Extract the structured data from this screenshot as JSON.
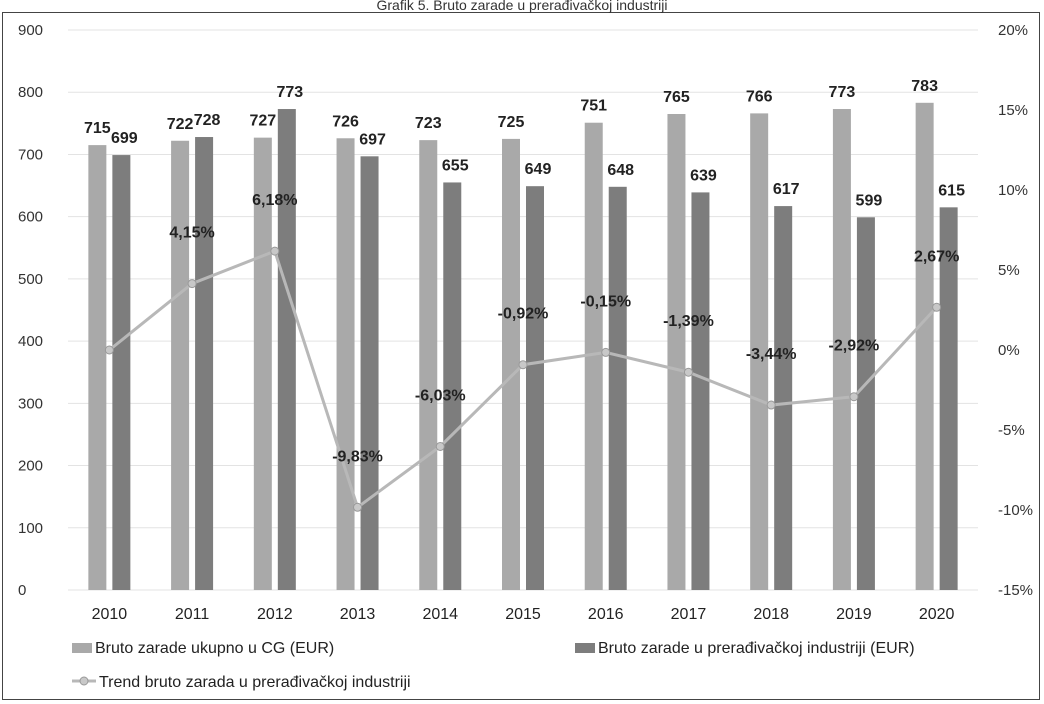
{
  "chart_data": {
    "type": "bar",
    "title": "Grafik 5. Bruto zarade u prerađivačkoj industriji",
    "categories": [
      "2010",
      "2011",
      "2012",
      "2013",
      "2014",
      "2015",
      "2016",
      "2017",
      "2018",
      "2019",
      "2020"
    ],
    "series": [
      {
        "name": "Bruto zarade ukupno u CG (EUR)",
        "type": "bar",
        "axis": "left",
        "color": "#a9a9a9",
        "values": [
          715,
          722,
          727,
          726,
          723,
          725,
          751,
          765,
          766,
          773,
          783
        ],
        "labels": [
          "715",
          "722",
          "727",
          "726",
          "723",
          "725",
          "751",
          "765",
          "766",
          "773",
          "783"
        ]
      },
      {
        "name": "Bruto zarade u prerađivačkoj industriji (EUR)",
        "type": "bar",
        "axis": "left",
        "color": "#7d7d7d",
        "values": [
          699,
          728,
          773,
          697,
          655,
          649,
          648,
          639,
          617,
          599,
          615
        ],
        "labels": [
          "699",
          "728",
          "773",
          "697",
          "655",
          "649",
          "648",
          "639",
          "617",
          "599",
          "615"
        ]
      },
      {
        "name": "Trend bruto zarada u prerađivačkoj industriji",
        "type": "line",
        "axis": "right",
        "color": "#b8b8b8",
        "values": [
          0,
          4.15,
          6.18,
          -9.83,
          -6.03,
          -0.92,
          -0.15,
          -1.39,
          -3.44,
          -2.92,
          2.67
        ],
        "labels": [
          "",
          "4,15%",
          "6,18%",
          "-9,83%",
          "-6,03%",
          "-0,92%",
          "-0,15%",
          "-1,39%",
          "-3,44%",
          "-2,92%",
          "2,67%"
        ]
      }
    ],
    "y_left": {
      "min": 0,
      "max": 900,
      "step": 100,
      "ticks": [
        "0",
        "100",
        "200",
        "300",
        "400",
        "500",
        "600",
        "700",
        "800",
        "900"
      ]
    },
    "y_right": {
      "min": -15,
      "max": 20,
      "step": 5,
      "ticks": [
        "-15%",
        "-10%",
        "-5%",
        "0%",
        "5%",
        "10%",
        "15%",
        "20%"
      ]
    },
    "grid": true,
    "legend_position": "bottom"
  }
}
